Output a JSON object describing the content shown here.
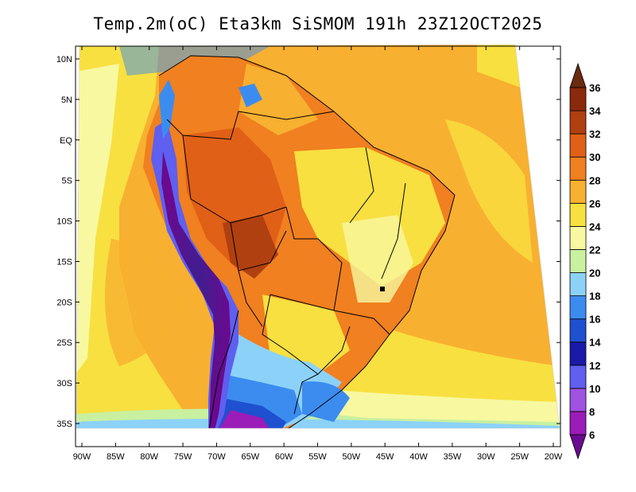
{
  "title": "Temp.2m(oC) Eta3km SiSMOM 191h 23Z12OCT2025",
  "map": {
    "lat_labels": [
      "10N",
      "5N",
      "EQ",
      "5S",
      "10S",
      "15S",
      "20S",
      "25S",
      "30S",
      "35S"
    ],
    "lat_values": [
      10,
      5,
      0,
      -5,
      -10,
      -15,
      -20,
      -25,
      -30,
      -35
    ],
    "lon_labels": [
      "90W",
      "85W",
      "80W",
      "75W",
      "70W",
      "65W",
      "60W",
      "55W",
      "50W",
      "45W",
      "40W",
      "35W",
      "30W",
      "25W",
      "20W"
    ],
    "lon_values": [
      -90,
      -85,
      -80,
      -75,
      -70,
      -65,
      -60,
      -55,
      -50,
      -45,
      -40,
      -35,
      -30,
      -25,
      -20
    ]
  },
  "colorbar": {
    "labels": [
      "6",
      "8",
      "10",
      "12",
      "14",
      "16",
      "18",
      "20",
      "22",
      "24",
      "26",
      "28",
      "30",
      "32",
      "34",
      "36"
    ],
    "colors": [
      "#6a0a8e",
      "#9b1cb8",
      "#a052e0",
      "#5f5ff0",
      "#1a1aa8",
      "#1f50d0",
      "#3c8cf0",
      "#8cd2f8",
      "#c8f0a0",
      "#f8f8a0",
      "#f8e040",
      "#f8b030",
      "#f08020",
      "#e06018",
      "#b04010",
      "#8a2a0c"
    ],
    "arrow_low_color": "#6a0a8e",
    "arrow_high_color": "#6a2a10"
  }
}
